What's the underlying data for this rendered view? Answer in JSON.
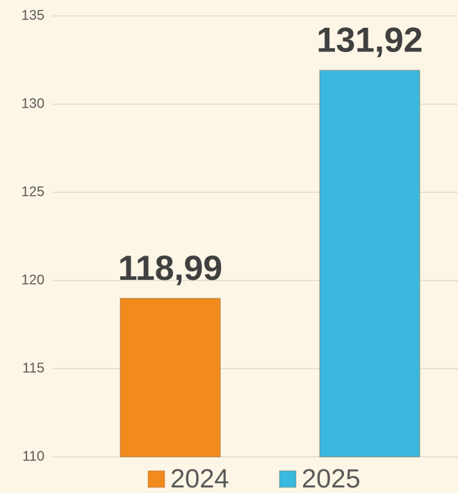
{
  "chart_data": {
    "type": "bar",
    "categories": [
      null
    ],
    "series": [
      {
        "name": "2024",
        "color": "#f28a1e",
        "values": [
          118.99
        ],
        "value_labels": [
          "118,99"
        ]
      },
      {
        "name": "2025",
        "color": "#3bb8de",
        "values": [
          131.92
        ],
        "value_labels": [
          "131,92"
        ]
      }
    ],
    "ylim": [
      110,
      135
    ],
    "yticks": [
      110,
      115,
      120,
      125,
      130,
      135
    ],
    "grid": true,
    "legend": "bottom"
  }
}
